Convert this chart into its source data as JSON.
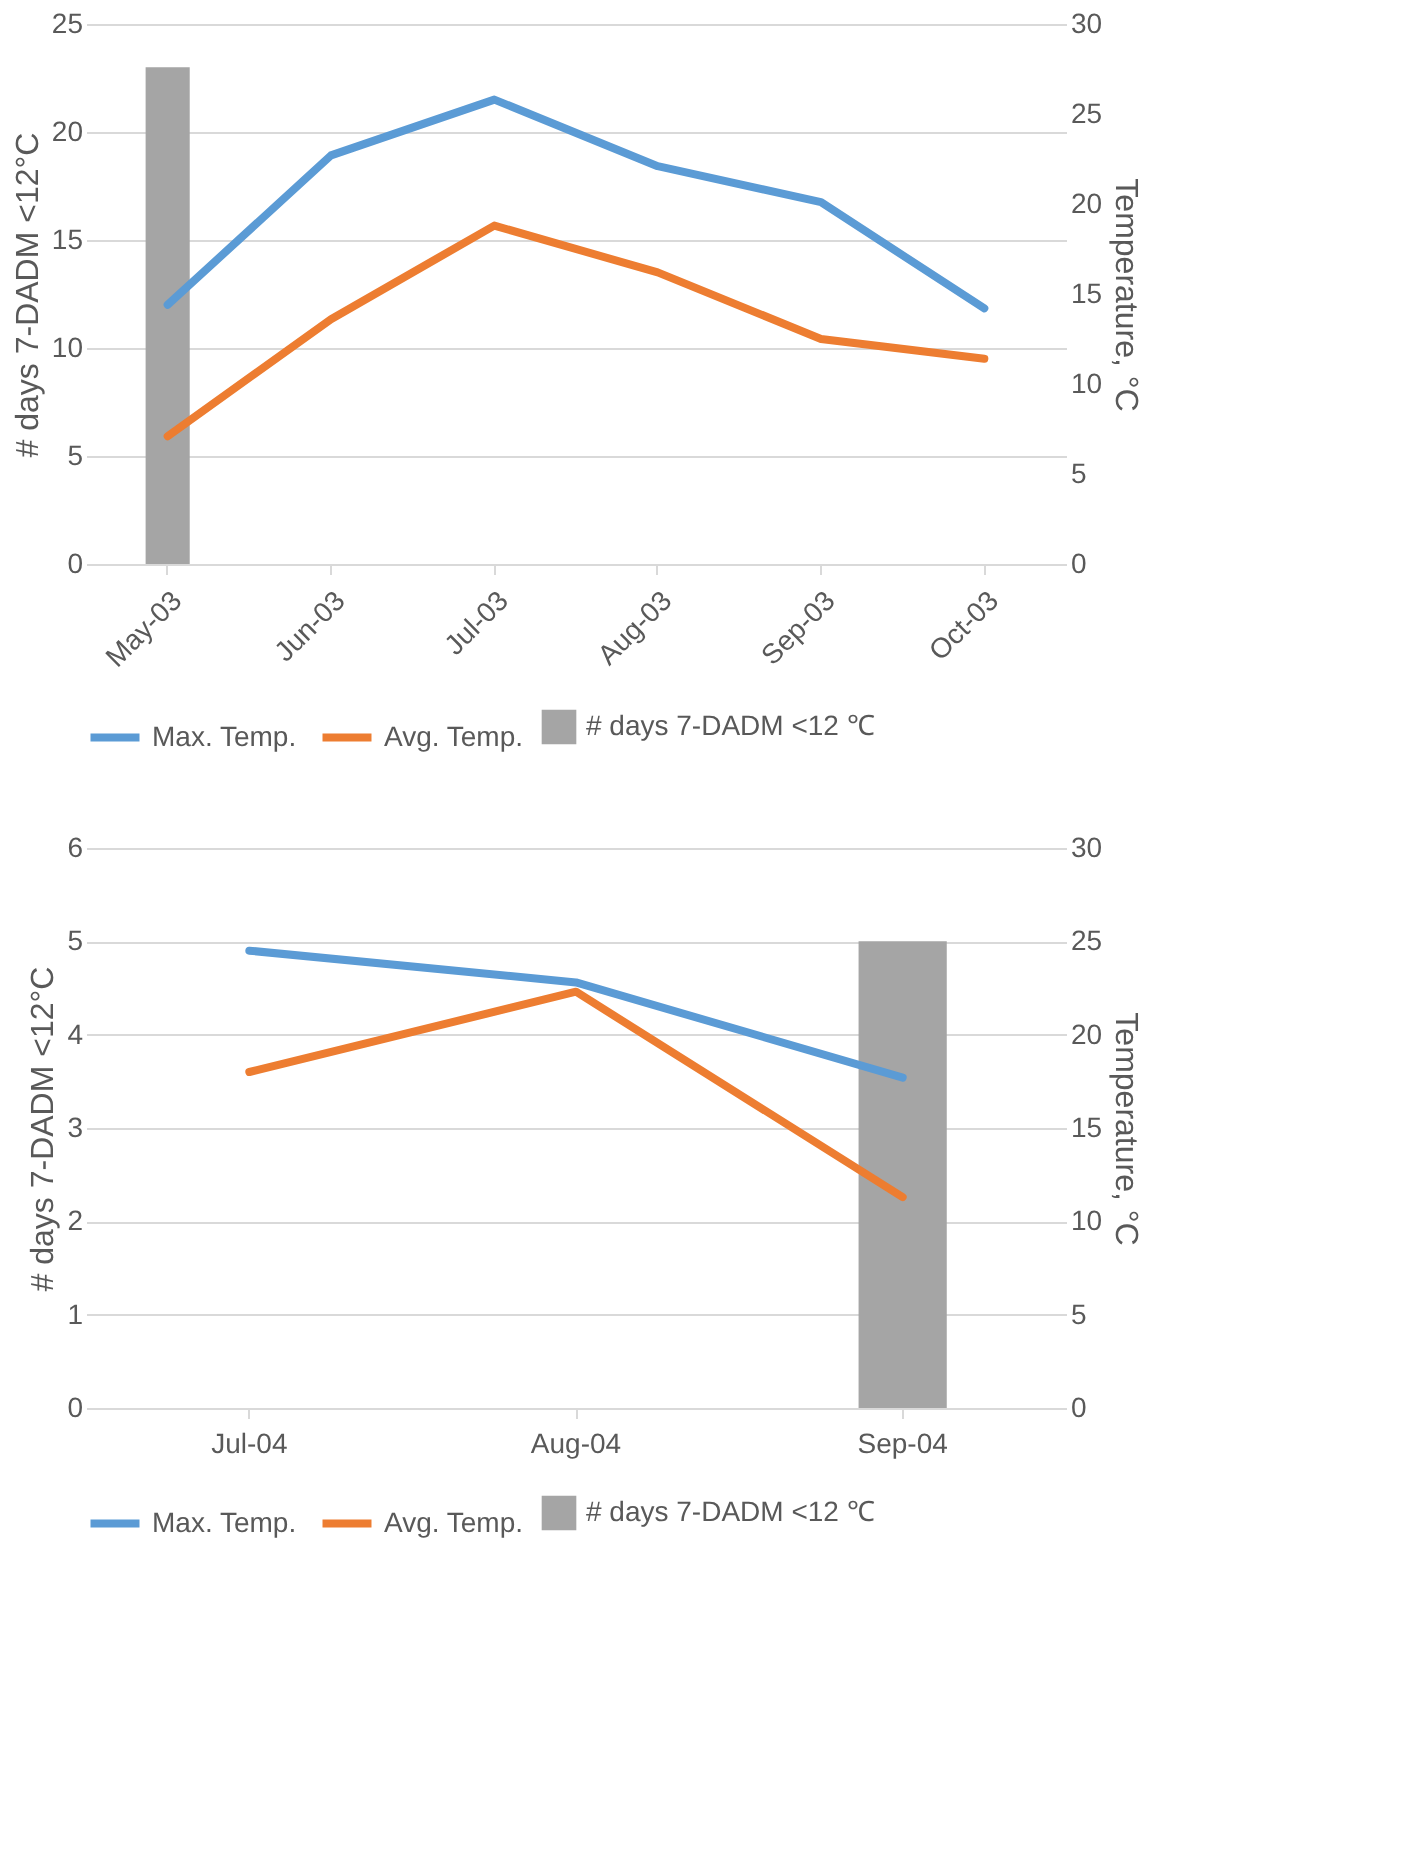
{
  "chart_data": [
    {
      "type": "bar",
      "categories": [
        "May-03",
        "Jun-03",
        "Jul-03",
        "Aug-03",
        "Sep-03",
        "Oct-03"
      ],
      "ylabel": "# days 7-DADM <12°C",
      "y2label": "Temperature, °C",
      "ylim": [
        0,
        25
      ],
      "yticks": [
        0,
        5,
        10,
        15,
        20,
        25
      ],
      "y2lim": [
        0,
        30
      ],
      "y2ticks": [
        0,
        5,
        10,
        15,
        20,
        25,
        30
      ],
      "grid": "y",
      "legend": "bottom",
      "series": [
        {
          "name": "# days 7-DADM <12 ℃",
          "color": "#a5a5a5",
          "values": [
            23,
            null,
            null,
            null,
            null,
            null
          ]
        },
        {
          "name": "Max. Temp.",
          "type": "line",
          "axis": "y2",
          "color": "#5b9bd5",
          "values": [
            14.4,
            22.7,
            25.8,
            22.1,
            20.1,
            14.2
          ]
        },
        {
          "name": "Avg. Temp.",
          "type": "line",
          "axis": "y2",
          "color": "#ed7d31",
          "values": [
            7.1,
            13.6,
            18.8,
            16.2,
            12.5,
            11.4
          ]
        }
      ]
    },
    {
      "type": "bar",
      "categories": [
        "Jul-04",
        "Aug-04",
        "Sep-04"
      ],
      "ylabel": "# days 7-DADM <12°C",
      "y2label": "Temperature, °C",
      "ylim": [
        0,
        6
      ],
      "yticks": [
        0,
        1,
        2,
        3,
        4,
        5,
        6
      ],
      "y2lim": [
        0,
        30
      ],
      "y2ticks": [
        0,
        5,
        10,
        15,
        20,
        25,
        30
      ],
      "grid": "y",
      "legend": "bottom",
      "series": [
        {
          "name": "# days 7-DADM <12 ℃",
          "color": "#a5a5a5",
          "values": [
            null,
            null,
            5
          ]
        },
        {
          "name": "Max. Temp.",
          "type": "line",
          "axis": "y2",
          "color": "#5b9bd5",
          "values": [
            24.5,
            22.8,
            17.7
          ]
        },
        {
          "name": "Avg. Temp.",
          "type": "line",
          "axis": "y2",
          "color": "#ed7d31",
          "values": [
            18.0,
            22.3,
            11.3
          ]
        }
      ]
    }
  ]
}
